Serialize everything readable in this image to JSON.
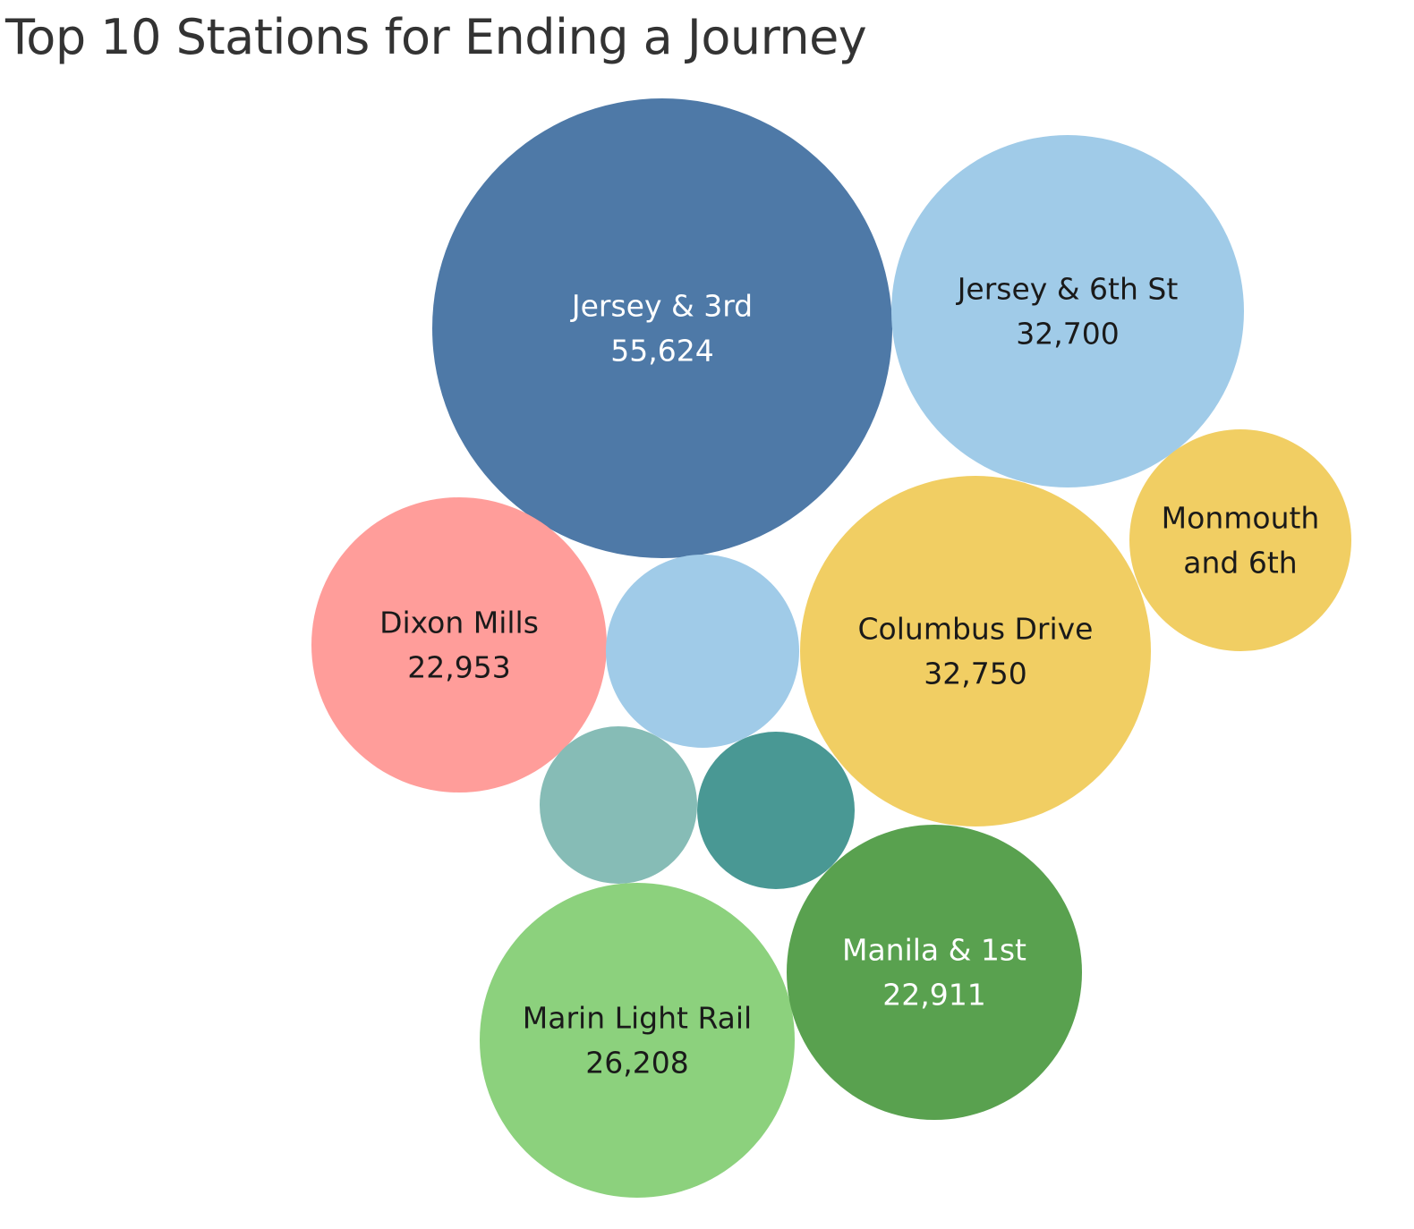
{
  "chart_data": {
    "type": "bubble",
    "title": "Top 10 Stations for Ending a Journey",
    "stations": [
      {
        "name": "Jersey & 3rd",
        "value": 55624,
        "value_label": "55,624",
        "color": "#4e79a7",
        "text_color": "#ffffff"
      },
      {
        "name": "Jersey & 6th St",
        "value": 32700,
        "value_label": "32,700",
        "color": "#a0cbe8",
        "text_color": "#1a1a1a"
      },
      {
        "name": "Columbus Drive",
        "value": 32750,
        "value_label": "32,750",
        "color": "#f1ce63",
        "text_color": "#1a1a1a"
      },
      {
        "name": "Marin Light Rail",
        "value": 26208,
        "value_label": "26,208",
        "color": "#8cd17d",
        "text_color": "#1a1a1a"
      },
      {
        "name": "Dixon Mills",
        "value": 22953,
        "value_label": "22,953",
        "color": "#ff9d9a",
        "text_color": "#1a1a1a"
      },
      {
        "name": "Manila & 1st",
        "value": 22911,
        "value_label": "22,911",
        "color": "#59a14f",
        "text_color": "#ffffff"
      },
      {
        "name": "Monmouth and 6th",
        "value": null,
        "value_label": "",
        "label_lines": [
          "Monmouth",
          "and 6th"
        ],
        "color": "#f1ce63",
        "text_color": "#1a1a1a"
      },
      {
        "name": "",
        "value": null,
        "value_label": "",
        "color": "#a0cbe8",
        "text_color": "#1a1a1a"
      },
      {
        "name": "",
        "value": null,
        "value_label": "",
        "color": "#499894",
        "text_color": "#ffffff"
      },
      {
        "name": "",
        "value": null,
        "value_label": "",
        "color": "#86bcb6",
        "text_color": "#1a1a1a"
      }
    ]
  }
}
